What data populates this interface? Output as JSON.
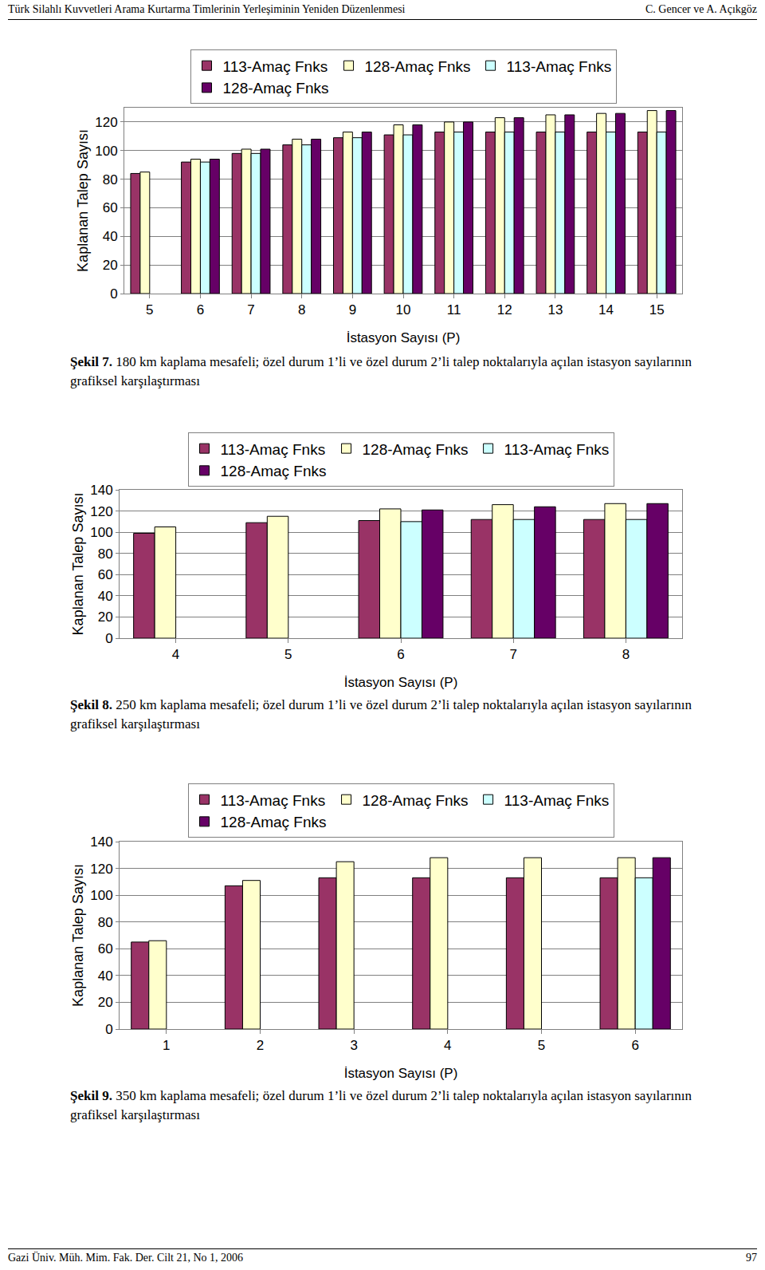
{
  "page": {
    "header_left": "Türk Silahlı Kuvvetleri Arama Kurtarma Timlerinin Yerleşiminin Yeniden Düzenlenmesi",
    "header_right": "C. Gencer ve A. Açıkgöz",
    "captions": [
      {
        "label": "Şekil 7.",
        "text": "180 km kaplama mesafeli; özel durum 1’li ve özel durum 2’li talep noktalarıyla açılan istasyon sayılarının grafiksel karşılaştırması"
      },
      {
        "label": "Şekil 8.",
        "text": "250 km kaplama mesafeli; özel durum 1’li ve özel durum 2’li talep noktalarıyla açılan istasyon sayılarının grafiksel karşılaştırması"
      },
      {
        "label": "Şekil 9.",
        "text": "350 km kaplama mesafeli; özel durum 1’li ve özel durum 2’li talep noktalarıyla açılan istasyon sayılarının grafiksel karşılaştırması"
      }
    ],
    "footer_left": "Gazi Üniv. Müh. Mim. Fak. Der. Cilt 21, No 1, 2006",
    "footer_right": "97"
  },
  "chart_data": [
    {
      "type": "bar",
      "x_label": "İstasyon Sayısı (P)",
      "y_label": "Kaplanan Talep Sayısı",
      "categories": [
        "5",
        "6",
        "7",
        "8",
        "9",
        "10",
        "11",
        "12",
        "13",
        "14",
        "15"
      ],
      "series": [
        {
          "name": "113-Amaç Fnks",
          "color": "#993366",
          "values": [
            84,
            92,
            98,
            104,
            109,
            111,
            113,
            113,
            113,
            113,
            113
          ]
        },
        {
          "name": "128-Amaç Fnks",
          "color": "#FFFFCC",
          "values": [
            85,
            94,
            101,
            108,
            113,
            118,
            120,
            123,
            125,
            126,
            128
          ]
        },
        {
          "name": "113-Amaç Fnks",
          "color": "#CCFFFF",
          "values": [
            null,
            92,
            98,
            104,
            109,
            111,
            113,
            113,
            113,
            113,
            113
          ]
        },
        {
          "name": "128-Amaç Fnks",
          "color": "#660066",
          "values": [
            null,
            94,
            101,
            108,
            113,
            118,
            120,
            123,
            125,
            126,
            128
          ]
        }
      ],
      "ylim": [
        0,
        130
      ],
      "yticks": [
        0,
        20,
        40,
        60,
        80,
        100,
        120
      ],
      "grid": true,
      "legend": "top"
    },
    {
      "type": "bar",
      "x_label": "İstasyon Sayısı (P)",
      "y_label": "Kaplanan Talep Sayısı",
      "categories": [
        "4",
        "5",
        "6",
        "7",
        "8"
      ],
      "series": [
        {
          "name": "113-Amaç Fnks",
          "color": "#993366",
          "values": [
            99,
            109,
            111,
            112,
            112
          ]
        },
        {
          "name": "128-Amaç Fnks",
          "color": "#FFFFCC",
          "values": [
            105,
            115,
            122,
            126,
            127
          ]
        },
        {
          "name": "113-Amaç Fnks",
          "color": "#CCFFFF",
          "values": [
            null,
            null,
            110,
            112,
            112
          ]
        },
        {
          "name": "128-Amaç Fnks",
          "color": "#660066",
          "values": [
            null,
            null,
            121,
            124,
            127
          ]
        }
      ],
      "ylim": [
        0,
        140
      ],
      "yticks": [
        0,
        20,
        40,
        60,
        80,
        100,
        120,
        140
      ],
      "grid": true,
      "legend": "top"
    },
    {
      "type": "bar",
      "x_label": "İstasyon Sayısı (P)",
      "y_label": "Kaplanan Talep Sayısı",
      "categories": [
        "1",
        "2",
        "3",
        "4",
        "5",
        "6"
      ],
      "series": [
        {
          "name": "113-Amaç Fnks",
          "color": "#993366",
          "values": [
            65,
            107,
            113,
            113,
            113,
            113
          ]
        },
        {
          "name": "128-Amaç Fnks",
          "color": "#FFFFCC",
          "values": [
            66,
            111,
            125,
            128,
            128,
            128
          ]
        },
        {
          "name": "113-Amaç Fnks",
          "color": "#CCFFFF",
          "values": [
            null,
            null,
            null,
            null,
            null,
            113
          ]
        },
        {
          "name": "128-Amaç Fnks",
          "color": "#660066",
          "values": [
            null,
            null,
            null,
            null,
            null,
            128
          ]
        }
      ],
      "ylim": [
        0,
        140
      ],
      "yticks": [
        0,
        20,
        40,
        60,
        80,
        100,
        120,
        140
      ],
      "grid": true,
      "legend": "top"
    }
  ]
}
